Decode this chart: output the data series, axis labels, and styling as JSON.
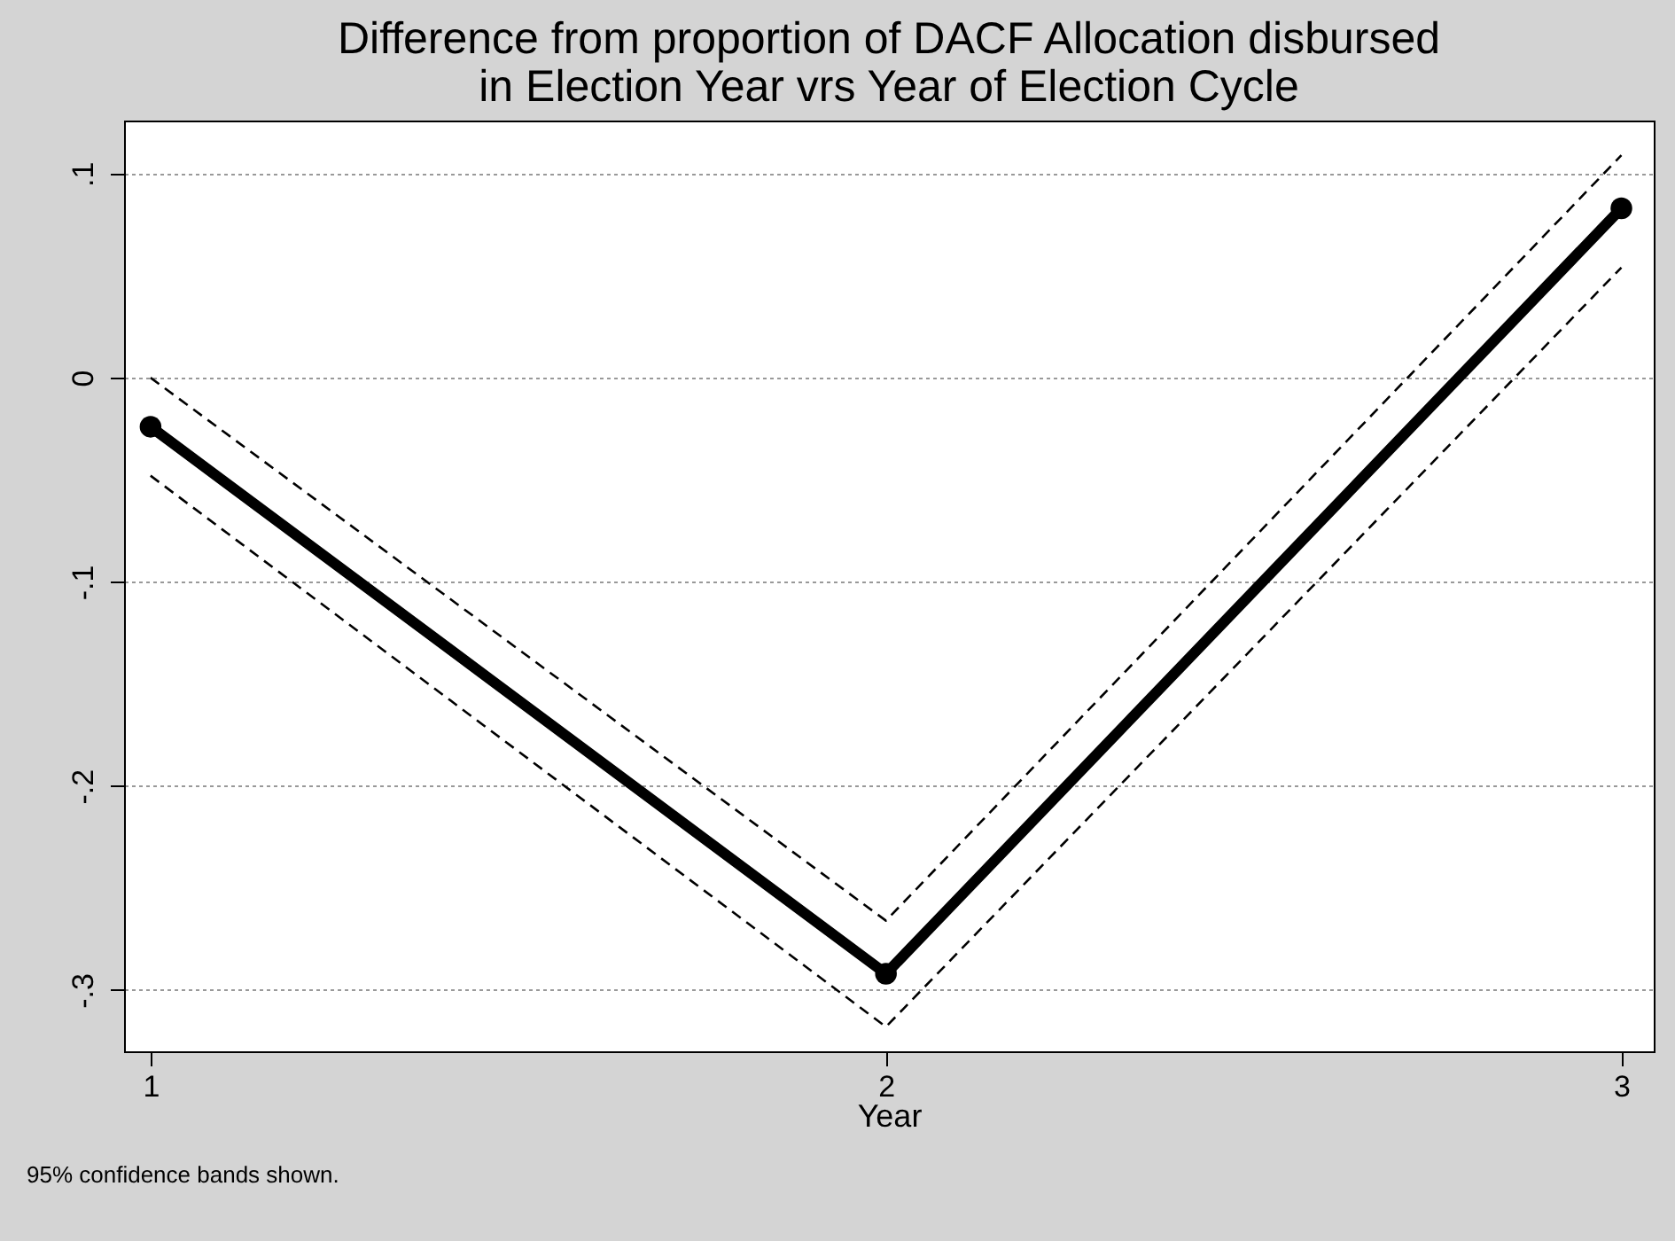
{
  "chart_data": {
    "type": "line",
    "title": "Difference from proportion of DACF Allocation disbursed\nin Election Year vrs Year of Election Cycle",
    "xlabel": "Year",
    "x": [
      1,
      2,
      3
    ],
    "series": [
      {
        "color": "#000000",
        "values": [
          -0.024,
          -0.292,
          0.083
        ]
      },
      {
        "color": "#000000",
        "values": [
          0.0,
          -0.266,
          0.109
        ],
        "line_style": "dashed",
        "marker": "none"
      },
      {
        "color": "#000000",
        "values": [
          -0.048,
          -0.318,
          0.054
        ],
        "line_style": "dashed",
        "marker": "none"
      }
    ],
    "xlim": [
      0.964,
      3.044
    ],
    "xticks": [
      {
        "value": 1,
        "label": "1"
      },
      {
        "value": 2,
        "label": "2"
      },
      {
        "value": 3,
        "label": "3"
      }
    ],
    "ylim": [
      -0.33,
      0.126
    ],
    "yticks": [
      {
        "value": -0.3,
        "label": "-.3"
      },
      {
        "value": -0.2,
        "label": "-.2"
      },
      {
        "value": -0.1,
        "label": "-.1"
      },
      {
        "value": 0,
        "label": "0"
      },
      {
        "value": 0.1,
        "label": ".1"
      }
    ],
    "grid": "y",
    "marker": "circle",
    "line_style": "solid",
    "annotations": [
      "95% confidence bands shown."
    ]
  }
}
